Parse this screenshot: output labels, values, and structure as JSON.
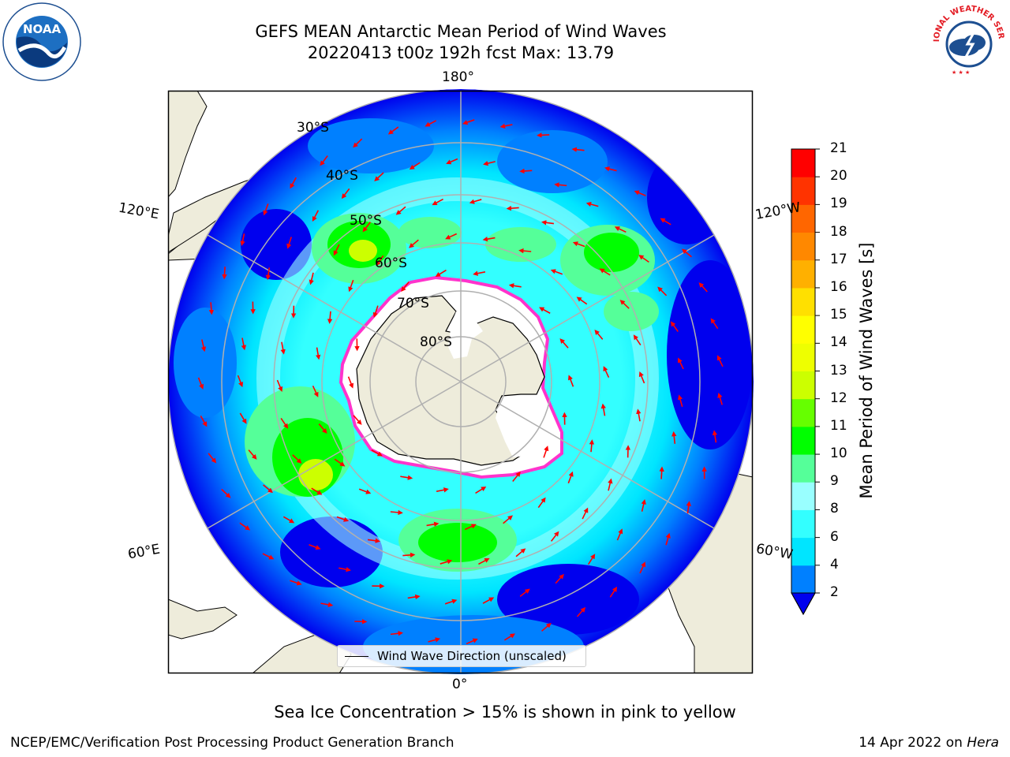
{
  "header": {
    "title_line1": "GEFS MEAN Antarctic Mean Period of Wind Waves",
    "title_line2": "20220413 t00z 192h fcst   Max: 13.79"
  },
  "logos": {
    "left": {
      "name": "noaa-logo",
      "text": "NOAA"
    },
    "right": {
      "name": "nws-logo",
      "text": "NATIONAL WEATHER SERVICE"
    }
  },
  "map": {
    "projection": "south-polar-stereographic",
    "land_color": "#eeecdb",
    "ice_edge_color": "#ff33cc",
    "longitude_labels": [
      "180°",
      "120°E",
      "120°W",
      "60°E",
      "60°W",
      "0°"
    ],
    "latitude_labels": [
      "30°S",
      "40°S",
      "50°S",
      "60°S",
      "70°S",
      "80°S"
    ],
    "legend_label": "Wind Wave Direction (unscaled)"
  },
  "colorbar": {
    "label": "Mean Period of Wind Waves [s]",
    "ticks": [
      "21",
      "20",
      "19",
      "18",
      "17",
      "16",
      "15",
      "14",
      "13",
      "12",
      "11",
      "10",
      "9",
      "8",
      "6",
      "4",
      "2"
    ],
    "colors_bottom_to_top": [
      "#0080ff",
      "#00e5ff",
      "#33ffff",
      "#99ffff",
      "#55ff99",
      "#00ff00",
      "#66ff00",
      "#ccff00",
      "#eeff00",
      "#ffff00",
      "#ffe000",
      "#ffb000",
      "#ff8800",
      "#ff6600",
      "#ff3300",
      "#ff0000"
    ],
    "under_color": "#0000ee"
  },
  "footer": {
    "ice_note": "Sea Ice Concentration > 15% is shown in pink to yellow",
    "left": "NCEP/EMC/Verification Post Processing Product Generation Branch",
    "date": "14 Apr 2022 on ",
    "host": "Hera"
  }
}
